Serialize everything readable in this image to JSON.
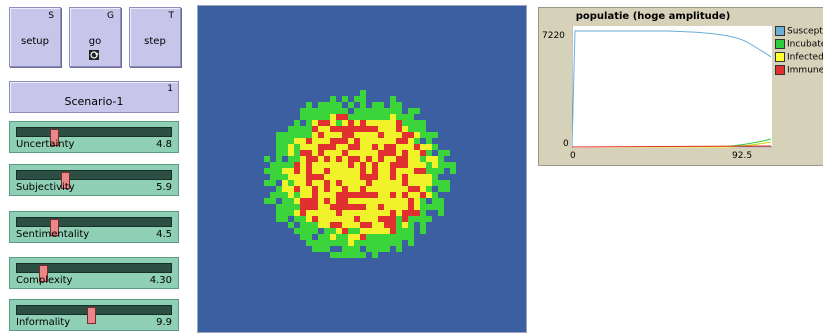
{
  "buttons": [
    {
      "key": "S",
      "label": "setup"
    },
    {
      "key": "G",
      "label": "go"
    },
    {
      "key": "T",
      "label": "step"
    }
  ],
  "chooser": {
    "label": "Scenario-1",
    "value": "1"
  },
  "sliders": [
    {
      "name": "Uncertainty",
      "value": "4.8",
      "fraction": 0.24
    },
    {
      "name": "Subjectivity",
      "value": "5.9",
      "fraction": 0.31
    },
    {
      "name": "Sentimentality",
      "value": "4.5",
      "fraction": 0.24
    },
    {
      "name": "Complexity",
      "value": "4.30",
      "fraction": 0.17
    },
    {
      "name": "Informality",
      "value": "9.9",
      "fraction": 0.48
    }
  ],
  "plot": {
    "title": "populatie (hoge amplitude)",
    "ymax": "7220",
    "ymin": "0",
    "xmin": "0",
    "xmax": "92.5",
    "legend": [
      {
        "name": "Susceptible",
        "color": "#6baed6"
      },
      {
        "name": "Incubated",
        "color": "#2ecc40"
      },
      {
        "name": "Infected",
        "color": "#ffff33"
      },
      {
        "name": "Immune",
        "color": "#e03030"
      }
    ]
  },
  "world": {
    "background": "#3b5fa0"
  }
}
